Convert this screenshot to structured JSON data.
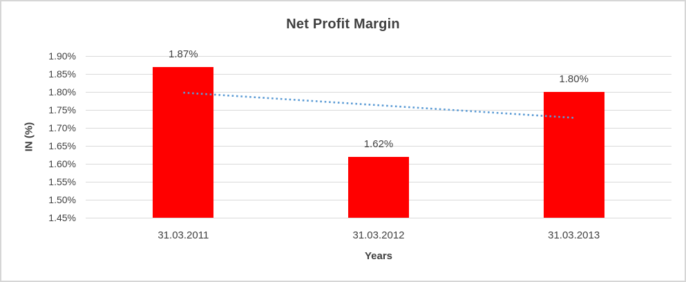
{
  "chart_data": {
    "type": "bar",
    "title": "Net Profit Margin",
    "xlabel": "Years",
    "ylabel": "IN (%)",
    "categories": [
      "31.03.2011",
      "31.03.2012",
      "31.03.2013"
    ],
    "values": [
      1.87,
      1.62,
      1.8
    ],
    "data_labels": [
      "1.87%",
      "1.62%",
      "1.80%"
    ],
    "ylim": [
      1.45,
      1.9
    ],
    "ytick_values": [
      1.9,
      1.85,
      1.8,
      1.75,
      1.7,
      1.65,
      1.6,
      1.55,
      1.5,
      1.45
    ],
    "ytick_labels": [
      "1.90%",
      "1.85%",
      "1.80%",
      "1.75%",
      "1.70%",
      "1.65%",
      "1.60%",
      "1.55%",
      "1.50%",
      "1.45%"
    ],
    "grid": true,
    "legend_position": "none",
    "bar_color": "#ff0000",
    "gridline_color": "#d9d9d9",
    "text_color": "#404040",
    "trendline": {
      "type": "linear",
      "style": "dotted",
      "color": "#5b9bd5",
      "start_value": 1.798,
      "end_value": 1.728
    }
  }
}
